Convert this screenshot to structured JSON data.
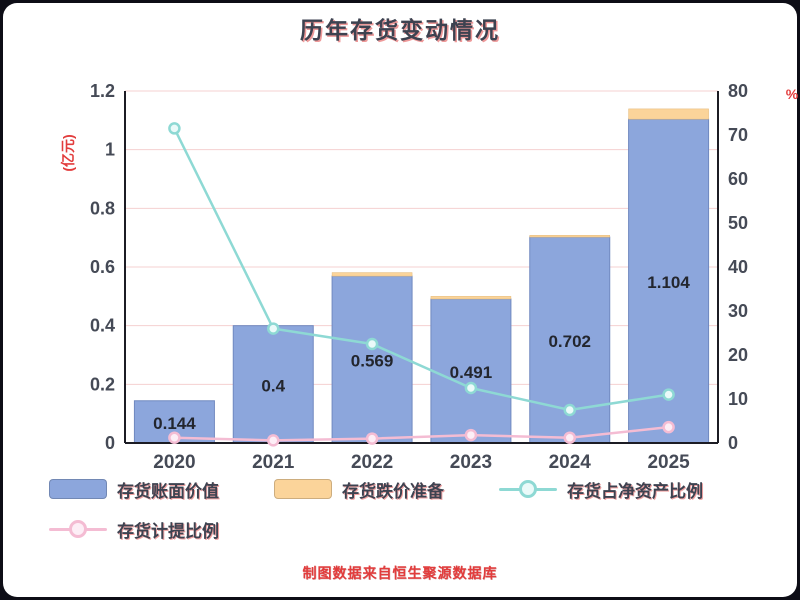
{
  "title": "历年存货变动情况",
  "footer": "制图数据来自恒生聚源数据库",
  "chart_data": {
    "type": "bar",
    "title": "历年存货变动情况",
    "categories": [
      "2020",
      "2021",
      "2022",
      "2023",
      "2024",
      "2025"
    ],
    "series": [
      {
        "name": "存货账面价值",
        "type": "bar",
        "axis": "left",
        "color": "#8ca6dc",
        "edge_color": "#7089c0",
        "values": [
          0.144,
          0.4,
          0.569,
          0.491,
          0.702,
          1.104
        ],
        "labels": [
          "0.144",
          "0.4",
          "0.569",
          "0.491",
          "0.702",
          "1.104"
        ]
      },
      {
        "name": "存货跌价准备",
        "type": "bar-stack",
        "axis": "left",
        "color": "#fbd49a",
        "edge_color": "#e4b978",
        "values": [
          0.001,
          0.001,
          0.012,
          0.009,
          0.006,
          0.035
        ]
      },
      {
        "name": "存货占净资产比例",
        "type": "line",
        "axis": "right",
        "color": "#8ed9d4",
        "marker_fill": "#eafaf9",
        "values": [
          71.5,
          26,
          22.5,
          12.5,
          7.5,
          11
        ]
      },
      {
        "name": "存货计提比例",
        "type": "line",
        "axis": "right",
        "color": "#f4bcd3",
        "marker_fill": "#fdeef6",
        "values": [
          1.2,
          0.6,
          1,
          1.8,
          1.2,
          3.6
        ]
      }
    ],
    "left_axis": {
      "label": "(亿元)",
      "min": 0,
      "max": 1.2,
      "ticks": [
        "0",
        "0.2",
        "0.4",
        "0.6",
        "0.8",
        "1",
        "1.2"
      ]
    },
    "right_axis": {
      "label": "%",
      "min": 0,
      "max": 80,
      "ticks": [
        "0",
        "10",
        "20",
        "30",
        "40",
        "50",
        "60",
        "70",
        "80"
      ]
    },
    "grid": "horizontal",
    "grid_color": "#f5d0d0",
    "legend_position": "bottom"
  }
}
